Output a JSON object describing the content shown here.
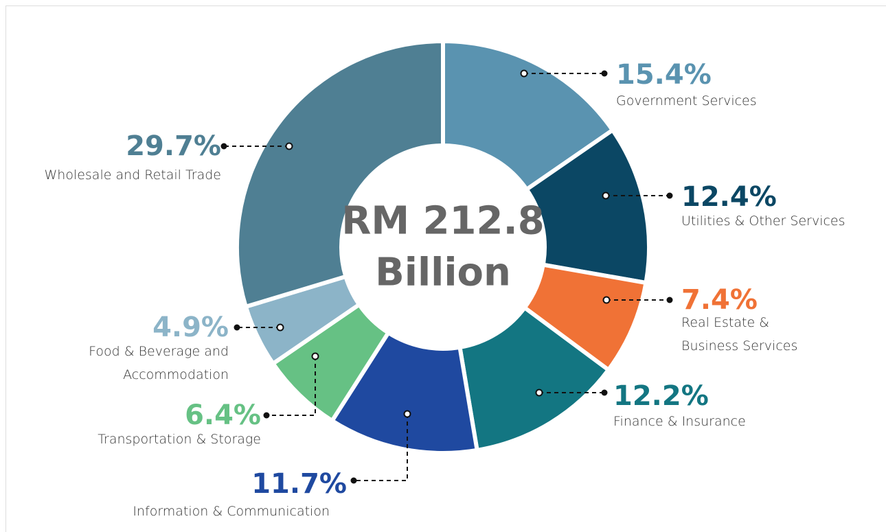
{
  "chart_data": {
    "type": "donut",
    "center_label": [
      "RM 212.8",
      "Billion"
    ],
    "categories": [
      "Government Services",
      "Utilities & Other Services",
      "Real Estate & Business Services",
      "Finance & Insurance",
      "Information & Communication",
      "Transportation & Storage",
      "Food & Beverage and Accommodation",
      "Wholesale and Retail Trade"
    ],
    "values": [
      15.4,
      12.4,
      7.4,
      12.2,
      11.7,
      6.4,
      4.9,
      29.7
    ],
    "value_labels": [
      "15.4%",
      "12.4%",
      "7.4%",
      "12.2%",
      "11.7%",
      "6.4%",
      "4.9%",
      "29.7%"
    ],
    "colors": [
      "#5a93b0",
      "#0b4764",
      "#f07236",
      "#137682",
      "#1f49a0",
      "#66c184",
      "#8cb4c8",
      "#4f7f93"
    ]
  }
}
